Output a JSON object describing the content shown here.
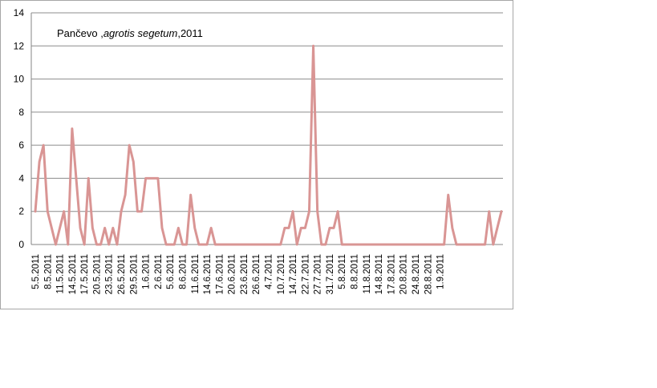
{
  "chart_data": {
    "type": "line",
    "title_parts": {
      "location": "Pančevo ,",
      "species": "agrotis segetum",
      "year_suffix": ",2011"
    },
    "xlabel": "",
    "ylabel": "",
    "ylim": [
      0,
      14
    ],
    "yticks": [
      0,
      2,
      4,
      6,
      8,
      10,
      12,
      14
    ],
    "grid": true,
    "legend": "none",
    "line_color": "#d99594",
    "x_tick_labels": [
      "5.5.2011",
      "8.5.2011",
      "11.5.2011",
      "14.5.2011",
      "17.5.2011",
      "20.5.2011",
      "23.5.2011",
      "26.5.2011",
      "29.5.2011",
      "1.6.2011",
      "2.6.2011",
      "5.6.2011",
      "8.6.2011",
      "11.6.2011",
      "14.6.2011",
      "17.6.2011",
      "20.6.2011",
      "23.6.2011",
      "26.6.2011",
      "4.7.2011",
      "10.7.2011",
      "14.7.2011",
      "22.7.2011",
      "27.7.2011",
      "31.7.2011",
      "5.8.2011",
      "8.8.2011",
      "11.8.2011",
      "14.8.2011",
      "17.8.2011",
      "20.8.2011",
      "24.8.2011",
      "28.8.2011",
      "1.9.2011"
    ],
    "tick_every": 3,
    "values": [
      2,
      5,
      6,
      2,
      1,
      0,
      1,
      2,
      0,
      7,
      4,
      1,
      0,
      4,
      1,
      0,
      0,
      1,
      0,
      1,
      0,
      2,
      3,
      6,
      5,
      2,
      2,
      4,
      4,
      4,
      4,
      1,
      0,
      0,
      0,
      1,
      0,
      0,
      3,
      1,
      0,
      0,
      0,
      1,
      0,
      0,
      0,
      0,
      0,
      0,
      0,
      0,
      0,
      0,
      0,
      0,
      0,
      0,
      0,
      0,
      0,
      1,
      1,
      2,
      0,
      1,
      1,
      2,
      12,
      2,
      0,
      0,
      1,
      1,
      2,
      0,
      0,
      0,
      0,
      0,
      0,
      0,
      0,
      0,
      0,
      0,
      0,
      0,
      0,
      0,
      0,
      0,
      0,
      0,
      0,
      0,
      0,
      0,
      0,
      0,
      0,
      3,
      1,
      0,
      0,
      0,
      0,
      0,
      0,
      0,
      0,
      2,
      0,
      1,
      2
    ]
  }
}
